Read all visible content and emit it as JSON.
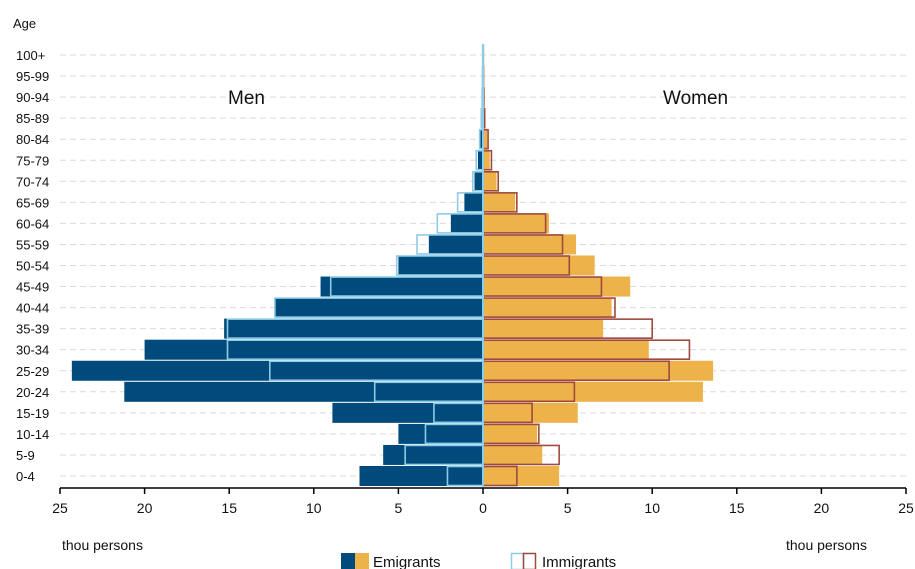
{
  "chart_data": {
    "type": "bar",
    "subtype": "population-pyramid",
    "y_axis_title": "Age",
    "categories": [
      "0-4",
      "5-9",
      "10-14",
      "15-19",
      "20-24",
      "25-29",
      "30-34",
      "35-39",
      "40-44",
      "45-49",
      "50-54",
      "55-59",
      "60-64",
      "65-69",
      "70-74",
      "75-79",
      "80-84",
      "85-89",
      "90-94",
      "95-99",
      "100+"
    ],
    "left_group_label": "Men",
    "right_group_label": "Women",
    "x_unit_label_left": "thou persons",
    "x_unit_label_right": "thou persons",
    "x_ticks": [
      "25",
      "20",
      "15",
      "10",
      "5",
      "0",
      "5",
      "10",
      "15",
      "20",
      "25"
    ],
    "xlim": [
      -25,
      25
    ],
    "grid": "horizontal dashed",
    "legend": {
      "placement": "bottom",
      "emigrants_label": "Emigrants",
      "immigrants_label": "Immigrants"
    },
    "series": [
      {
        "name": "Emigrants",
        "sex": "men",
        "values": [
          7.3,
          5.9,
          5.0,
          8.9,
          21.2,
          24.3,
          20.0,
          15.3,
          12.3,
          9.6,
          5.0,
          3.2,
          1.9,
          1.1,
          0.5,
          0.3,
          0.15,
          0.1,
          0.05,
          0.03,
          0.02
        ]
      },
      {
        "name": "Immigrants",
        "sex": "men",
        "values": [
          2.1,
          4.6,
          3.4,
          2.9,
          6.4,
          12.6,
          15.1,
          15.1,
          12.3,
          9.0,
          5.1,
          3.9,
          2.7,
          1.5,
          0.6,
          0.4,
          0.2,
          0.1,
          0.05,
          0.03,
          0.02
        ]
      },
      {
        "name": "Emigrants",
        "sex": "women",
        "values": [
          4.5,
          3.5,
          3.2,
          5.6,
          13.0,
          13.6,
          9.8,
          7.1,
          7.6,
          8.7,
          6.6,
          5.5,
          3.9,
          1.9,
          0.8,
          0.4,
          0.25,
          0.1,
          0.05,
          0.03,
          0.02
        ]
      },
      {
        "name": "Immigrants",
        "sex": "women",
        "values": [
          2.0,
          4.5,
          3.3,
          2.9,
          5.4,
          11.0,
          12.2,
          10.0,
          7.8,
          7.0,
          5.1,
          4.7,
          3.7,
          2.0,
          0.9,
          0.5,
          0.3,
          0.1,
          0.05,
          0.03,
          0.02
        ]
      }
    ]
  },
  "colors": {
    "emigrants_men": "#004a7c",
    "emigrants_women": "#edb24a",
    "immigrants_men": "#8ecbe6",
    "immigrants_women": "#9e4a3e",
    "grid": "#d9d9d9",
    "axis": "#000000"
  }
}
